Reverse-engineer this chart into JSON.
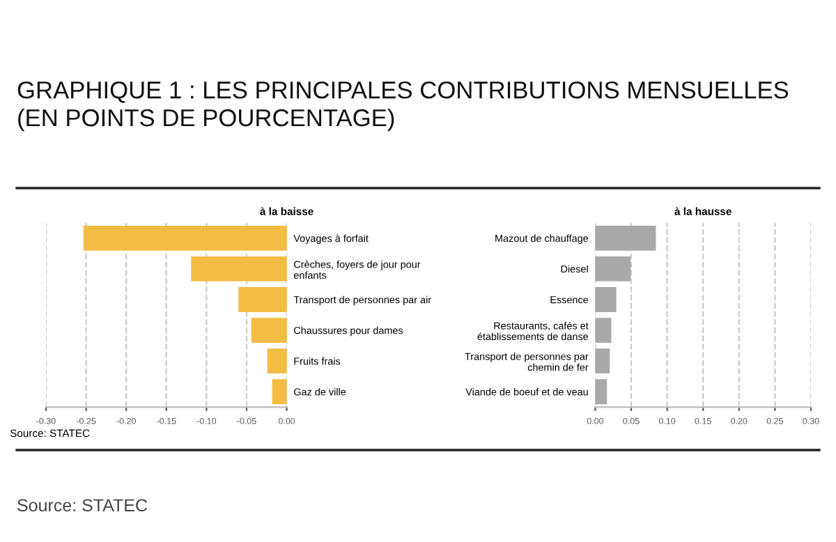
{
  "chart_data": [
    {
      "type": "bar",
      "orientation": "horizontal",
      "title": "GRAPHIQUE 1 : LES PRINCIPALES CONTRIBUTIONS MENSUELLES\n(EN POINTS DE POURCENTAGE)",
      "subtitle": "à la baisse",
      "categories": [
        "Voyages à forfait",
        "Crèches, foyers de jour pour\nenfants",
        "Transport de personnes par air",
        "Chaussures pour dames",
        "Fruits frais",
        "Gaz de ville"
      ],
      "values": [
        -0.252,
        -0.118,
        -0.059,
        -0.043,
        -0.023,
        -0.017
      ],
      "color": "#f3bc45",
      "xlim": [
        -0.3,
        0
      ],
      "xticks": [
        {
          "value": -0.3,
          "label": "-0.30"
        },
        {
          "value": -0.25,
          "label": "-0.25"
        },
        {
          "value": -0.2,
          "label": "-0.20"
        },
        {
          "value": -0.15,
          "label": "-0.15"
        },
        {
          "value": -0.1,
          "label": "-0.10"
        },
        {
          "value": -0.05,
          "label": "-0.05"
        },
        {
          "value": 0,
          "label": "0.00"
        }
      ],
      "grid": "x",
      "annotations": [
        "Source: STATEC"
      ]
    },
    {
      "type": "bar",
      "orientation": "horizontal",
      "subtitle": "à la hausse",
      "categories": [
        "Mazout de chauffage",
        "Diesel",
        "Essence",
        "Restaurants, cafés et\nétablissements de danse",
        "Transport de personnes par\nchemin de fer",
        "Viande de boeuf et de veau"
      ],
      "values": [
        0.083,
        0.048,
        0.028,
        0.021,
        0.019,
        0.015
      ],
      "color": "#a9a9a9",
      "xlim": [
        0,
        0.3
      ],
      "xticks": [
        {
          "value": 0,
          "label": "0.00"
        },
        {
          "value": 0.05,
          "label": "0.05"
        },
        {
          "value": 0.1,
          "label": "0.10"
        },
        {
          "value": 0.15,
          "label": "0.15"
        },
        {
          "value": 0.2,
          "label": "0.20"
        },
        {
          "value": 0.25,
          "label": "0.25"
        },
        {
          "value": 0.3,
          "label": "0.30"
        }
      ],
      "grid": "x",
      "annotations": [
        "Source: STATEC"
      ]
    }
  ]
}
